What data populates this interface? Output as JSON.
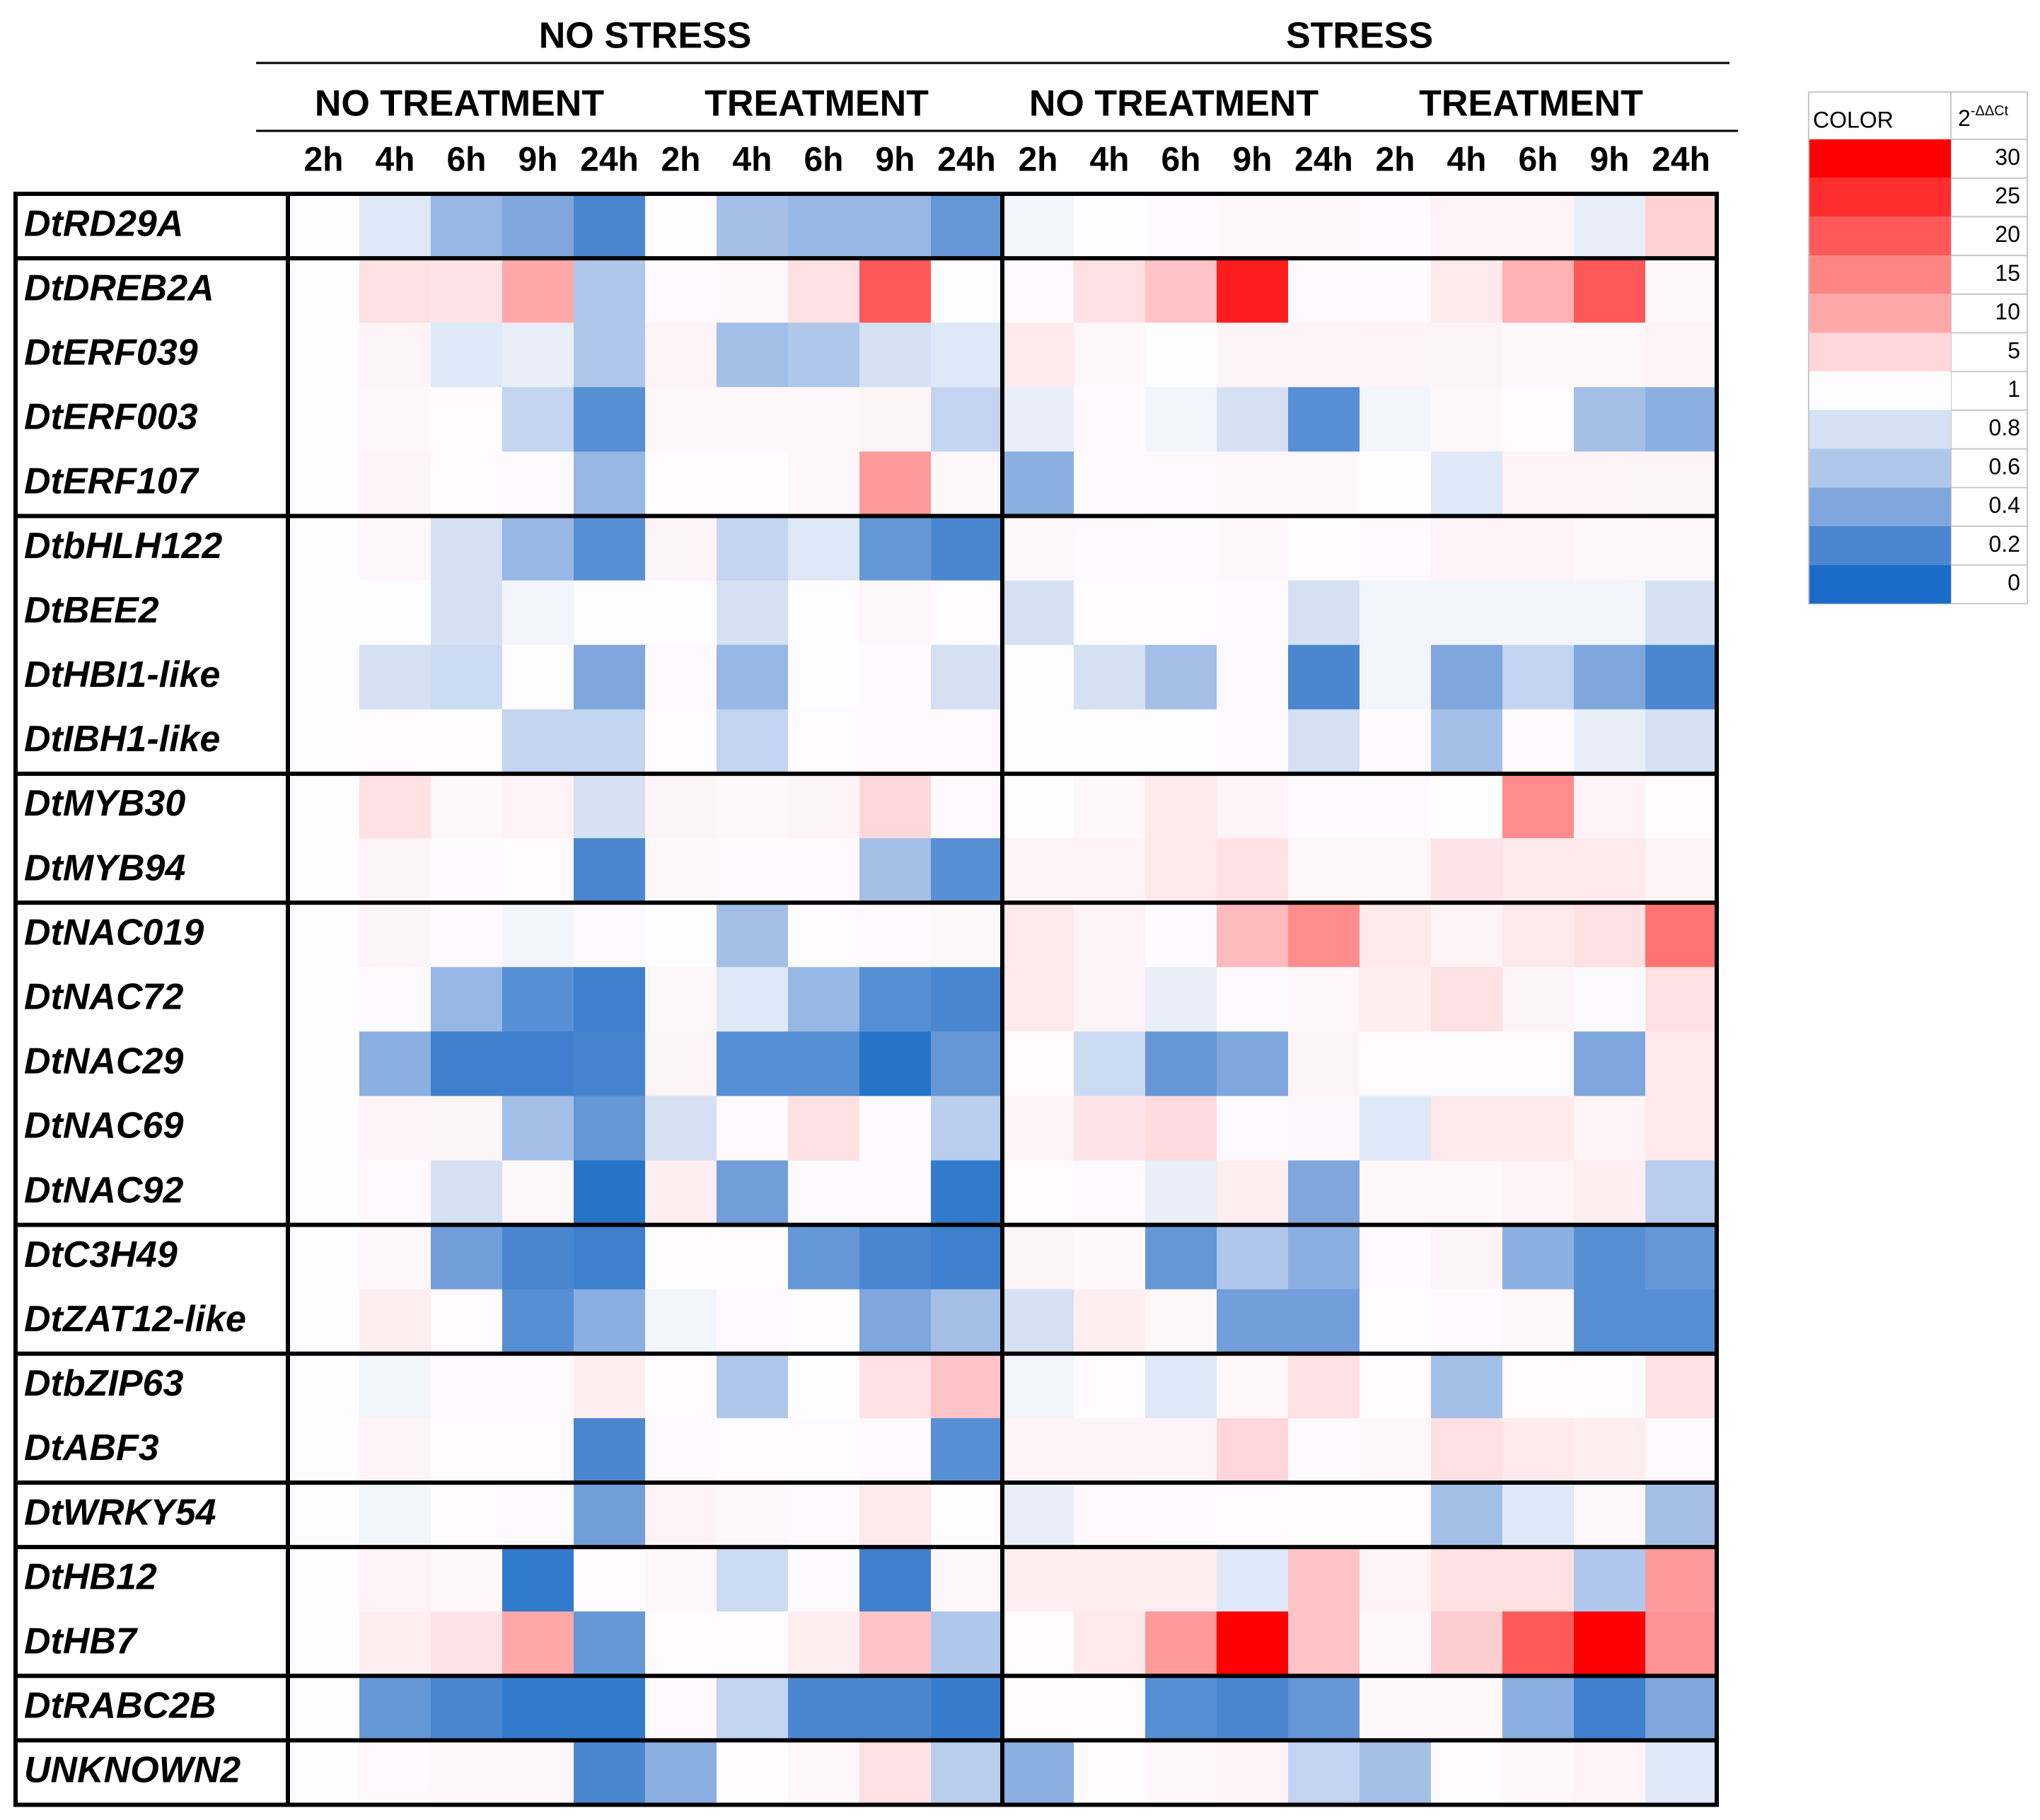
{
  "chart_data": {
    "type": "heatmap",
    "groups": [
      "NO STRESS",
      "STRESS"
    ],
    "subgroups": [
      "NO TREATMENT",
      "TREATMENT",
      "NO TREATMENT",
      "TREATMENT"
    ],
    "x": [
      "2h",
      "4h",
      "6h",
      "9h",
      "24h",
      "2h",
      "4h",
      "6h",
      "9h",
      "24h",
      "2h",
      "4h",
      "6h",
      "9h",
      "24h",
      "2h",
      "4h",
      "6h",
      "9h",
      "24h"
    ],
    "y": [
      "DtRD29A",
      "DtDREB2A",
      "DtERF039",
      "DtERF003",
      "DtERF107",
      "DtbHLH122",
      "DtBEE2",
      "DtHBI1-like",
      "DtIBH1-like",
      "DtMYB30",
      "DtMYB94",
      "DtNAC019",
      "DtNAC72",
      "DtNAC29",
      "DtNAC69",
      "DtNAC92",
      "DtC3H49",
      "DtZAT12-like",
      "DtbZIP63",
      "DtABF3",
      "DtWRKY54",
      "DtHB12",
      "DtHB7",
      "DtRABC2B",
      "UNKNOWN2"
    ],
    "values": [
      [
        1,
        0.85,
        0.5,
        0.4,
        0.2,
        1,
        0.55,
        0.5,
        0.5,
        0.3,
        0.95,
        1,
        1.2,
        1.5,
        1.5,
        1.2,
        2,
        2,
        0.9,
        5.5
      ],
      [
        1,
        4,
        3.5,
        10,
        0.6,
        1.3,
        1.5,
        4,
        20,
        1,
        1.3,
        4,
        7,
        27,
        1.3,
        1.2,
        3,
        9,
        20,
        1.5
      ],
      [
        1,
        1.8,
        0.85,
        0.9,
        0.6,
        2,
        0.55,
        0.6,
        0.8,
        0.85,
        3,
        1.5,
        1,
        2,
        2,
        2,
        1.8,
        1.5,
        1.5,
        2
      ],
      [
        1,
        1.5,
        1.1,
        0.7,
        0.25,
        1.5,
        1.5,
        1.5,
        1.8,
        0.7,
        0.9,
        1.3,
        0.95,
        0.8,
        0.25,
        0.95,
        1.5,
        1.1,
        0.55,
        0.45
      ],
      [
        1,
        2,
        1.1,
        1.3,
        0.5,
        1.1,
        1.1,
        1.5,
        12,
        1.5,
        0.45,
        1.2,
        1.3,
        1.5,
        1.5,
        1,
        0.85,
        2,
        2,
        1.8
      ],
      [
        1,
        1.5,
        0.8,
        0.5,
        0.25,
        1.8,
        0.7,
        0.85,
        0.3,
        0.2,
        1.5,
        1.3,
        1.2,
        1.5,
        1.1,
        1.3,
        2,
        2,
        1.5,
        1.5
      ],
      [
        1,
        1,
        0.8,
        0.95,
        1,
        1,
        0.8,
        1,
        1.5,
        1.1,
        0.8,
        1.1,
        1.1,
        1.2,
        0.8,
        0.95,
        0.95,
        0.95,
        0.95,
        0.8
      ],
      [
        1,
        0.8,
        0.75,
        1,
        0.4,
        1.3,
        0.5,
        1,
        1.2,
        0.8,
        1,
        0.8,
        0.55,
        1.2,
        0.2,
        0.95,
        0.4,
        0.7,
        0.4,
        0.2
      ],
      [
        1,
        1.1,
        1.1,
        0.7,
        0.7,
        1.1,
        0.7,
        1.1,
        1.3,
        1.3,
        1,
        1,
        1,
        1.2,
        0.8,
        1.3,
        0.55,
        1.3,
        0.9,
        0.8
      ],
      [
        1,
        4,
        1.5,
        2,
        0.8,
        1.8,
        1.5,
        1.8,
        5,
        1.3,
        1,
        1.5,
        3,
        2,
        1.2,
        1.2,
        1,
        14,
        2,
        1.1
      ],
      [
        1,
        1.8,
        1.2,
        1.1,
        0.2,
        1.5,
        1.3,
        1.3,
        0.55,
        0.25,
        2,
        2,
        3,
        4,
        1.5,
        1.5,
        3.5,
        3,
        3,
        2
      ],
      [
        1,
        1.8,
        1.3,
        0.95,
        1.2,
        1,
        0.55,
        1.1,
        1.3,
        1.5,
        3,
        2,
        1.2,
        8,
        14,
        3,
        2,
        3,
        4,
        17
      ],
      [
        1,
        1.2,
        0.5,
        0.25,
        0.15,
        1.5,
        0.85,
        0.5,
        0.25,
        0.2,
        3,
        2,
        0.9,
        1.2,
        1.5,
        2.5,
        4,
        1.8,
        1.2,
        4
      ],
      [
        1,
        0.45,
        0.15,
        0.15,
        0.18,
        1.8,
        0.25,
        0.25,
        0.05,
        0.3,
        1.1,
        0.75,
        0.3,
        0.4,
        1.8,
        1.1,
        1.1,
        1.1,
        0.4,
        3
      ],
      [
        1,
        2,
        1.8,
        0.55,
        0.3,
        0.8,
        1.3,
        4,
        1.2,
        0.65,
        2,
        3.5,
        4.5,
        1.2,
        1.4,
        0.85,
        3,
        3,
        2,
        3
      ],
      [
        1,
        1.3,
        0.8,
        1.5,
        0.05,
        2.5,
        0.35,
        1.2,
        1.2,
        0.1,
        1.1,
        1.2,
        0.9,
        2.5,
        0.4,
        1.5,
        1.5,
        2,
        2.5,
        0.65
      ],
      [
        1,
        1.5,
        0.35,
        0.2,
        0.15,
        1.1,
        1.1,
        0.3,
        0.2,
        0.15,
        1.8,
        1.5,
        0.3,
        0.6,
        0.45,
        1.3,
        1.8,
        0.45,
        0.25,
        0.3
      ],
      [
        1,
        2.5,
        1.1,
        0.25,
        0.45,
        0.95,
        1.3,
        1.1,
        0.4,
        0.55,
        0.8,
        2.5,
        1.5,
        0.35,
        0.35,
        1.1,
        1.3,
        1.5,
        0.25,
        0.25
      ],
      [
        1,
        0.95,
        1.3,
        1.2,
        2.5,
        1.1,
        0.6,
        1,
        4,
        7,
        0.95,
        1.1,
        0.85,
        1.5,
        4,
        1.1,
        0.55,
        1.1,
        1.1,
        4
      ],
      [
        1,
        2,
        1.1,
        1.1,
        0.2,
        1.3,
        1.1,
        1.1,
        1.3,
        0.25,
        2,
        2,
        2,
        5,
        1.2,
        1.5,
        4,
        3,
        2.5,
        1.3
      ],
      [
        1,
        0.95,
        1.1,
        1.2,
        0.35,
        2,
        1.5,
        1.3,
        3,
        1.05,
        0.9,
        1.3,
        1.2,
        1.1,
        1.1,
        1.1,
        0.55,
        0.85,
        1.5,
        0.55
      ],
      [
        1,
        2,
        1.5,
        0.1,
        1.1,
        1.5,
        0.75,
        1.2,
        0.15,
        1.5,
        2.5,
        2.5,
        2.5,
        0.85,
        7,
        2,
        4,
        4,
        0.6,
        12
      ],
      [
        1,
        2.5,
        3.5,
        10,
        0.3,
        1.1,
        1.1,
        2.5,
        7,
        0.6,
        1.1,
        3,
        12,
        30,
        7,
        1.5,
        6,
        20,
        30,
        13
      ],
      [
        1,
        0.3,
        0.2,
        0.1,
        0.1,
        1.3,
        0.7,
        0.2,
        0.2,
        0.12,
        1.1,
        1.1,
        0.25,
        0.2,
        0.3,
        1.5,
        1.5,
        0.45,
        0.15,
        0.4
      ],
      [
        1,
        1.3,
        1.5,
        1.5,
        0.2,
        0.45,
        1.1,
        1.5,
        4,
        0.65,
        0.45,
        1.1,
        1.5,
        2,
        0.7,
        0.55,
        1.1,
        1.5,
        2,
        0.85
      ]
    ],
    "colorbar": {
      "title": "COLOR",
      "label": "2",
      "label_sup": "-ΔΔCt",
      "ticks": [
        30,
        25,
        20,
        15,
        10,
        5,
        1,
        0.8,
        0.6,
        0.4,
        0.2,
        0
      ],
      "colors": [
        "#ff0000",
        "#ff2e2e",
        "#ff5858",
        "#ff8585",
        "#ffa8aa",
        "#ffd6da",
        "#fdfcff",
        "#d5e1f3",
        "#afc7ea",
        "#7fa7de",
        "#4a87d0",
        "#1a6cc8"
      ]
    }
  }
}
